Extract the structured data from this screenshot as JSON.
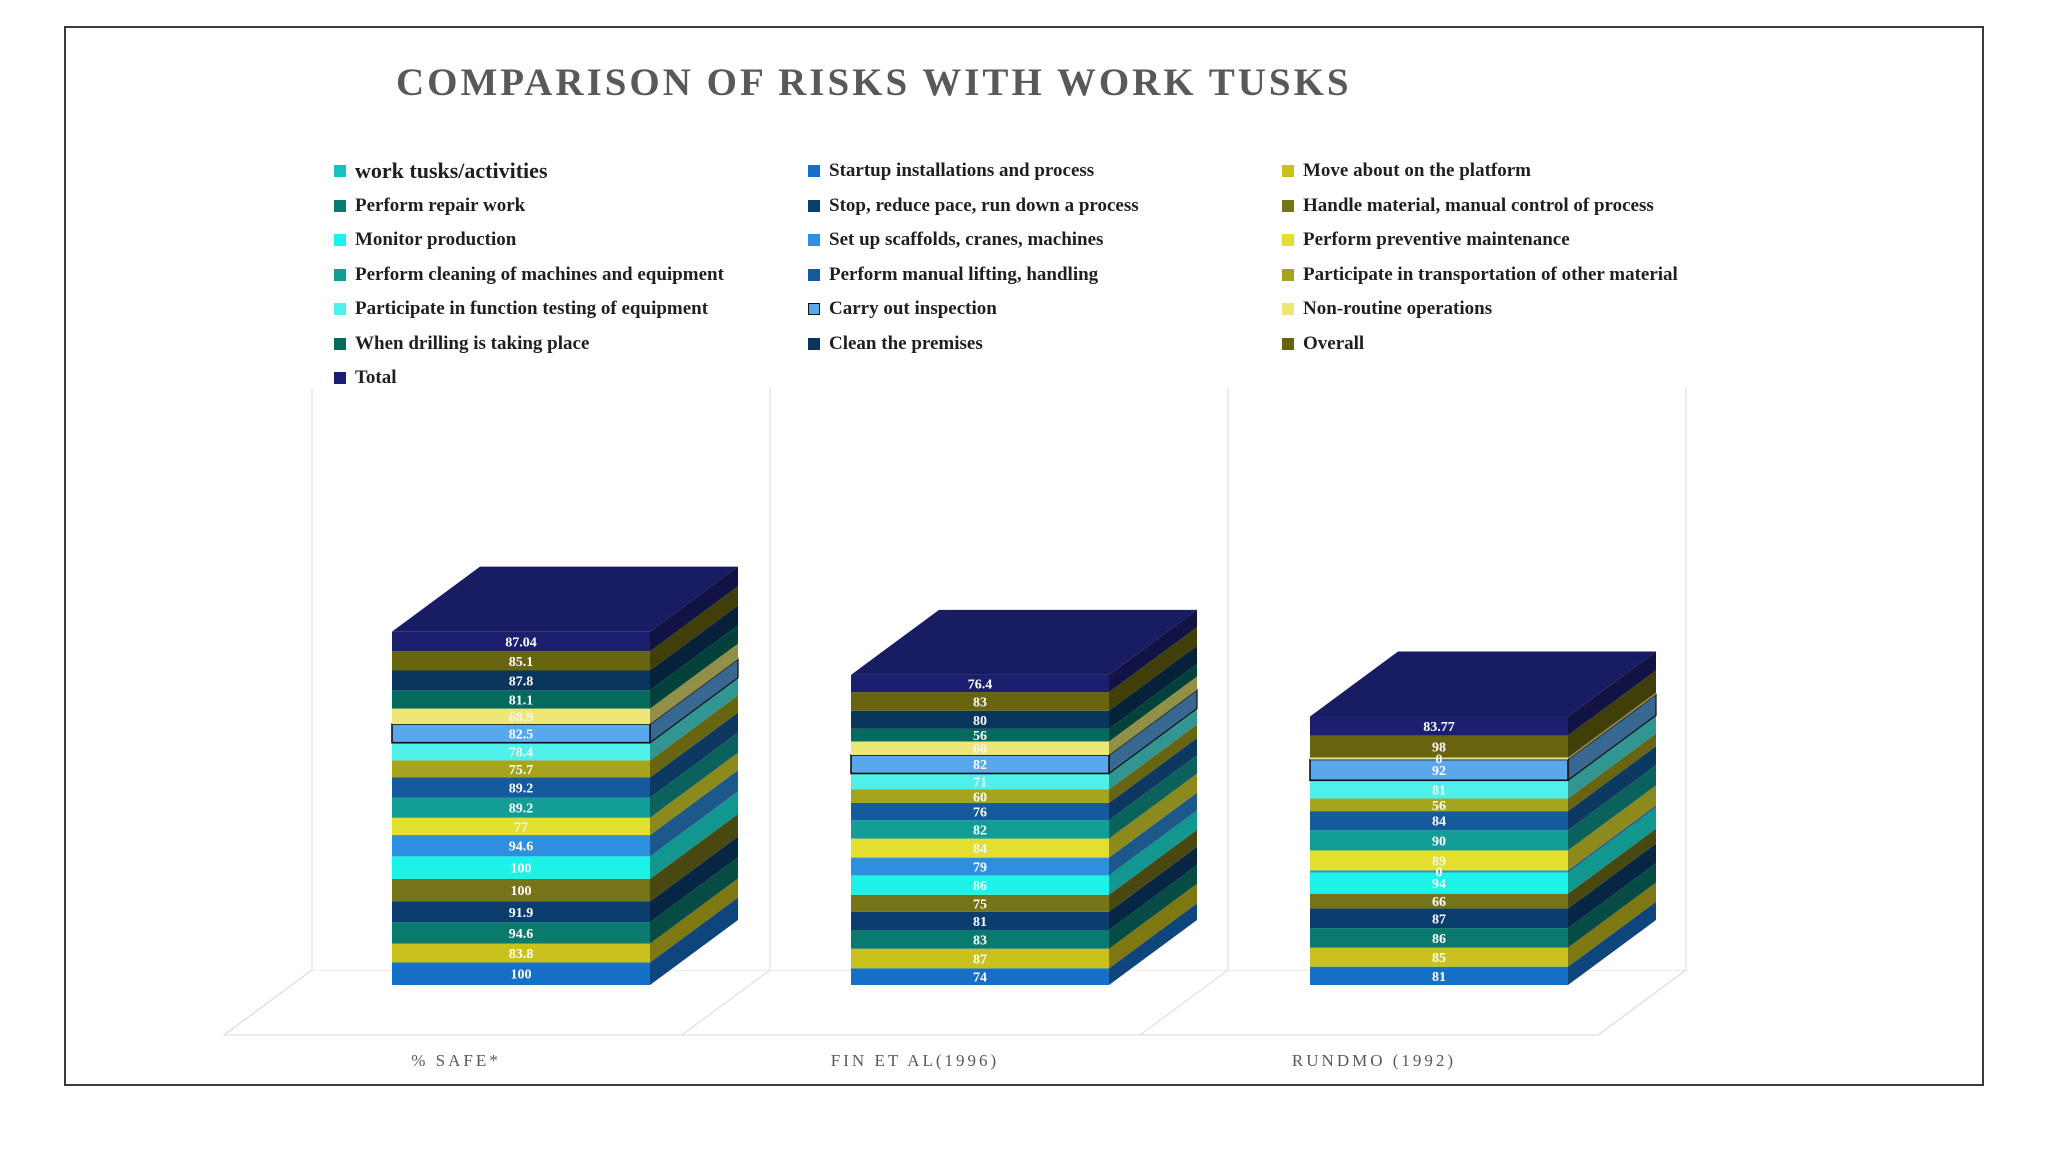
{
  "chart_data": {
    "type": "bar",
    "stacked": true,
    "three_d": true,
    "title": "COMPARISON OF RISKS WITH WORK TUSKS",
    "categories": [
      "% SAFE*",
      "FIN ET AL(1996)",
      "RUNDMO (1992)"
    ],
    "grid": false,
    "legend_position": "top",
    "series": [
      {
        "name": "work tusks/activities",
        "color": "#17C2C2",
        "values": [
          null,
          null,
          null
        ]
      },
      {
        "name": "Startup installations and process",
        "color": "#1670C8",
        "values": [
          100,
          74,
          81
        ]
      },
      {
        "name": "Move about on the platform",
        "color": "#C9C21C",
        "values": [
          83.8,
          87,
          85
        ]
      },
      {
        "name": "Perform repair work",
        "color": "#0A7A6E",
        "values": [
          94.6,
          83,
          86
        ]
      },
      {
        "name": "Stop, reduce pace, run down a process",
        "color": "#0B3E6E",
        "values": [
          91.9,
          81,
          87
        ]
      },
      {
        "name": "Handle material, manual control of process",
        "color": "#767419",
        "values": [
          100,
          75,
          66
        ]
      },
      {
        "name": "Monitor production",
        "color": "#1DF2E8",
        "values": [
          100,
          86,
          94
        ]
      },
      {
        "name": "Set up scaffolds, cranes, machines",
        "color": "#2E8EE0",
        "values": [
          94.6,
          79,
          0
        ]
      },
      {
        "name": "Perform preventive maintenance",
        "color": "#E3DF2E",
        "values": [
          77,
          84,
          89
        ]
      },
      {
        "name": "Perform cleaning of machines and equipment",
        "color": "#129E96",
        "values": [
          89.2,
          82,
          90
        ]
      },
      {
        "name": "Perform manual lifting, handling",
        "color": "#145A9C",
        "values": [
          89.2,
          76,
          84
        ]
      },
      {
        "name": "Participate in transportation of other material",
        "color": "#A6A31C",
        "values": [
          75.7,
          60,
          56
        ]
      },
      {
        "name": "Participate in function testing of equipment",
        "color": "#4FF0EA",
        "values": [
          78.4,
          71,
          81
        ]
      },
      {
        "name": "Carry out inspection",
        "color": "#5AA8EC",
        "values": [
          82.5,
          82,
          92
        ]
      },
      {
        "name": "Non-routine operations",
        "color": "#ECE776",
        "values": [
          68.9,
          60,
          0
        ]
      },
      {
        "name": "When drilling is taking place",
        "color": "#056A5E",
        "values": [
          81.1,
          56,
          null
        ]
      },
      {
        "name": "Clean the premises",
        "color": "#0A355C",
        "values": [
          87.8,
          80,
          null
        ]
      },
      {
        "name": "Overall",
        "color": "#68640F",
        "values": [
          85.1,
          83,
          98
        ]
      },
      {
        "name": "Total",
        "color": "#1B1F6E",
        "values": [
          87.04,
          76.4,
          83.77
        ]
      }
    ]
  }
}
